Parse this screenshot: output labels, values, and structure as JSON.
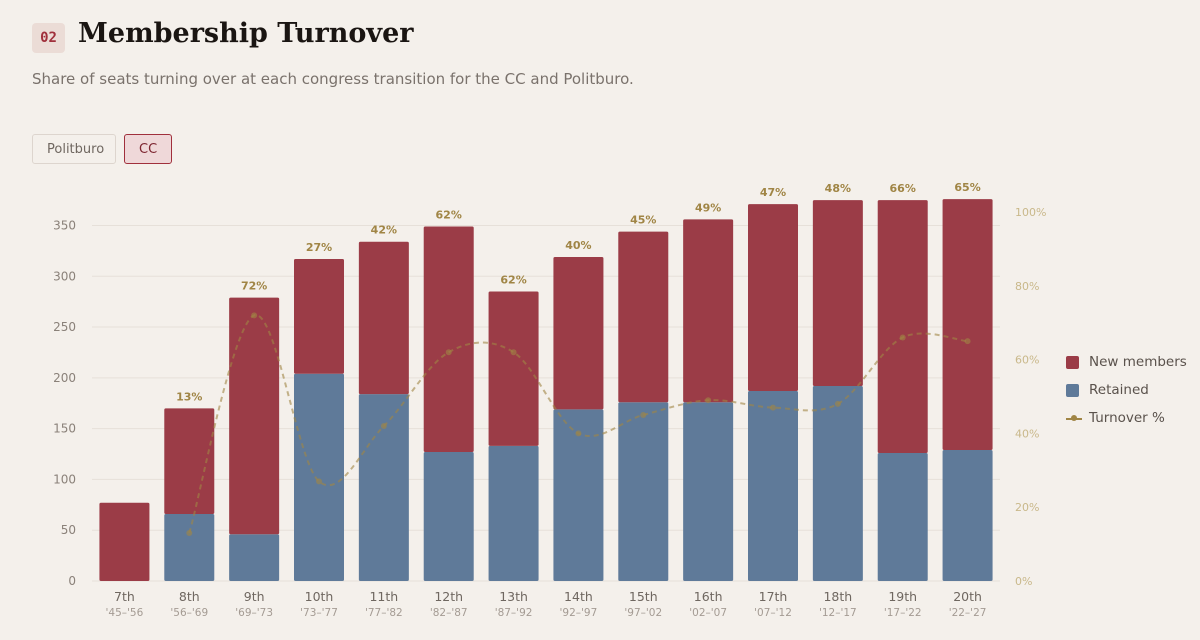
{
  "section": {
    "number": "02",
    "title": "Membership Turnover",
    "subtitle": "Share of seats turning over at each congress transition for the CC and Politburo."
  },
  "toggles": {
    "politburo": "Politburo",
    "cc": "CC",
    "active": "CC"
  },
  "legend": {
    "new_members": "New members",
    "retained": "Retained",
    "turnover": "Turnover %"
  },
  "colors": {
    "new_members": "#9b3c47",
    "retained": "#5f7a99",
    "turnover": "#a08545"
  },
  "chart_data": {
    "type": "bar",
    "stacked": true,
    "categories": [
      "7th",
      "8th",
      "9th",
      "10th",
      "11th",
      "12th",
      "13th",
      "14th",
      "15th",
      "16th",
      "17th",
      "18th",
      "19th",
      "20th"
    ],
    "periods": [
      "'45–'56",
      "'56–'69",
      "'69–'73",
      "'73–'77",
      "'77–'82",
      "'82–'87",
      "'87–'92",
      "'92–'97",
      "'97–'02",
      "'02–'07",
      "'07–'12",
      "'12–'17",
      "'17–'22",
      "'22–'27"
    ],
    "series": [
      {
        "name": "Retained",
        "values": [
          0,
          66,
          46,
          204,
          184,
          127,
          133,
          169,
          176,
          176,
          187,
          192,
          126,
          129
        ]
      },
      {
        "name": "New members",
        "values": [
          77,
          104,
          233,
          113,
          150,
          222,
          152,
          150,
          168,
          180,
          184,
          183,
          249,
          247
        ]
      }
    ],
    "turnover": {
      "name": "Turnover %",
      "values": [
        null,
        13,
        72,
        27,
        42,
        62,
        62,
        40,
        45,
        49,
        47,
        48,
        66,
        65
      ],
      "labels": [
        "",
        "13%",
        "72%",
        "27%",
        "42%",
        "62%",
        "62%",
        "40%",
        "45%",
        "49%",
        "47%",
        "48%",
        "66%",
        "65%"
      ]
    },
    "y_left": {
      "min": 0,
      "max": 380,
      "ticks": [
        0,
        50,
        100,
        150,
        200,
        250,
        300,
        350
      ]
    },
    "y_right": {
      "min": 0,
      "max": 100,
      "ticks": [
        0,
        20,
        40,
        60,
        80,
        100
      ],
      "tick_labels": [
        "0%",
        "20%",
        "40%",
        "60%",
        "80%",
        "100%"
      ]
    },
    "legend_position": "right"
  }
}
